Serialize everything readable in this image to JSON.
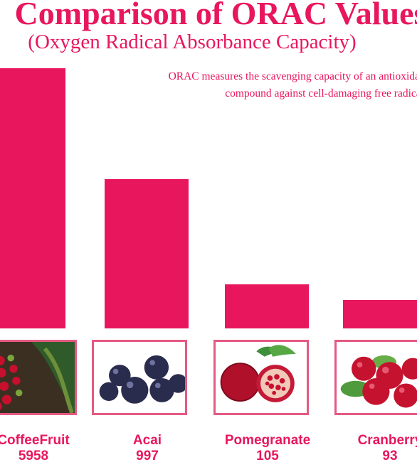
{
  "chart_data": {
    "type": "bar",
    "title": "Comparison of ORAC Values",
    "subtitle": "(Oxygen Radical Absorbance Capacity)",
    "annotation": [
      "ORAC measures the scavenging capacity of an antioxidant",
      "compound against cell-damaging free radicals"
    ],
    "categories": [
      "CoffeeFruit",
      "Acai",
      "Pomegranate",
      "Cranberry"
    ],
    "values": [
      5958,
      997,
      105,
      93
    ],
    "value_labels": [
      "5958",
      "997",
      "105",
      "93"
    ],
    "bar_color": "#e8175d",
    "xlabel": "",
    "ylabel": "",
    "grid": false,
    "legend": "none"
  },
  "icons": [
    "coffee-fruit-photo",
    "acai-berries-photo",
    "pomegranate-photo",
    "cranberry-photo"
  ]
}
